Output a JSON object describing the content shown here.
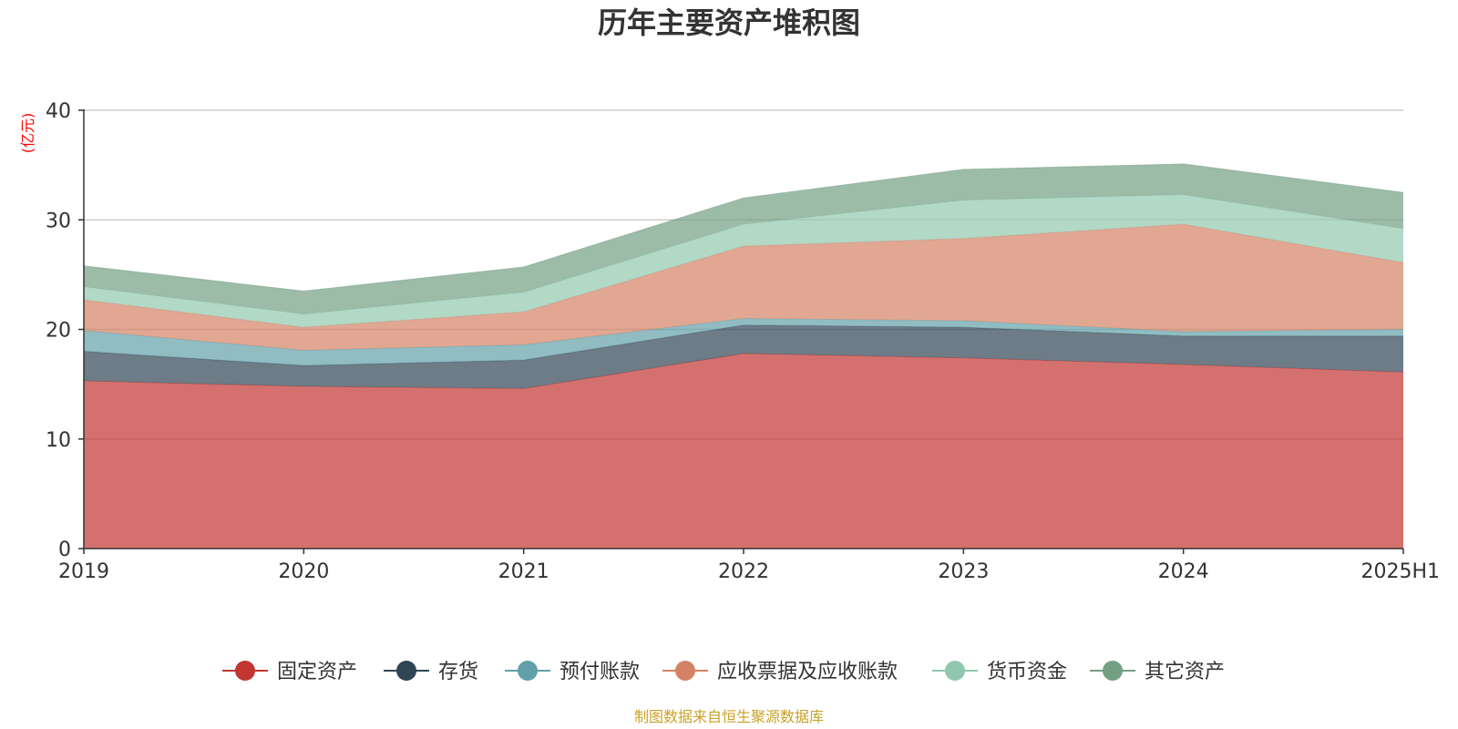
{
  "chart_data": {
    "type": "area",
    "stacked": true,
    "title": "历年主要资产堆积图",
    "ylabel": "(亿元)",
    "xlabel": "",
    "categories": [
      "2019",
      "2020",
      "2021",
      "2022",
      "2023",
      "2024",
      "2025H1"
    ],
    "ylim": [
      0,
      40
    ],
    "yticks": [
      0,
      10,
      20,
      30,
      40
    ],
    "grid": true,
    "legend_position": "bottom",
    "series": [
      {
        "name": "固定资产",
        "color": "#c23531",
        "values": [
          15.3,
          14.8,
          14.6,
          17.8,
          17.4,
          16.8,
          16.1
        ]
      },
      {
        "name": "存货",
        "color": "#2f4554",
        "values": [
          2.7,
          1.9,
          2.6,
          2.6,
          2.8,
          2.6,
          3.3
        ]
      },
      {
        "name": "预付账款",
        "color": "#61a0a8",
        "values": [
          1.9,
          1.4,
          1.4,
          0.6,
          0.6,
          0.4,
          0.6
        ]
      },
      {
        "name": "应收票据及应收账款",
        "color": "#d48265",
        "values": [
          2.8,
          2.1,
          3.0,
          6.6,
          7.5,
          9.8,
          6.1
        ]
      },
      {
        "name": "货币资金",
        "color": "#91c7ae",
        "values": [
          1.2,
          1.2,
          1.8,
          2.0,
          3.5,
          2.7,
          3.1
        ]
      },
      {
        "name": "其它资产",
        "color": "#749f83",
        "values": [
          1.9,
          2.1,
          2.3,
          2.4,
          2.8,
          2.8,
          3.3
        ]
      }
    ]
  },
  "source_note": "制图数据来自恒生聚源数据库",
  "colors": {
    "unit_label": "#ff0000",
    "source_note": "#c9a227",
    "axis": "#333333",
    "grid": "#cccccc"
  }
}
